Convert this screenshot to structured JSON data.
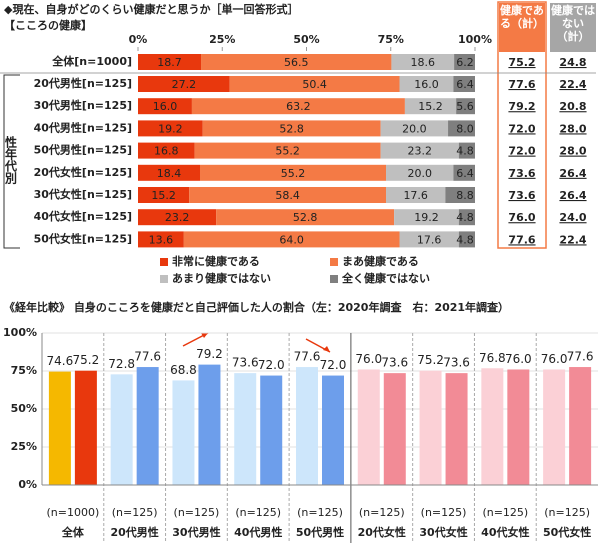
{
  "chart_data": [
    {
      "type": "stacked-bar-h",
      "title": "◆現在、自身がどのくらい健康だと思うか［単一回答形式］",
      "subtitle": "【こころの健康】",
      "side_label": "性年代別",
      "categories": [
        "全体[n=1000]",
        "20代男性[n=125]",
        "30代男性[n=125]",
        "40代男性[n=125]",
        "50代男性[n=125]",
        "20代女性[n=125]",
        "30代女性[n=125]",
        "40代女性[n=125]",
        "50代女性[n=125]"
      ],
      "series": [
        {
          "name": "非常に健康である",
          "color": "#e8380d",
          "values": [
            18.7,
            27.2,
            16.0,
            19.2,
            16.8,
            18.4,
            15.2,
            23.2,
            13.6
          ],
          "value_labels": [
            "18.7",
            "27.2",
            "16.0",
            "19.2",
            "16.8",
            "18.4",
            "15.2",
            "23.2",
            "13.6"
          ]
        },
        {
          "name": "まあ健康である",
          "color": "#f47a45",
          "values": [
            56.5,
            50.4,
            63.2,
            52.8,
            55.2,
            55.2,
            58.4,
            52.8,
            64.0
          ],
          "value_labels": [
            "56.5",
            "50.4",
            "63.2",
            "52.8",
            "55.2",
            "55.2",
            "58.4",
            "52.8",
            "64.0"
          ]
        },
        {
          "name": "あまり健康ではない",
          "color": "#bfbfbf",
          "values": [
            18.6,
            16.0,
            15.2,
            20.0,
            23.2,
            20.0,
            17.6,
            19.2,
            17.6
          ],
          "value_labels": [
            "18.6",
            "16.0",
            "15.2",
            "20.0",
            "23.2",
            "20.0",
            "17.6",
            "19.2",
            "17.6"
          ]
        },
        {
          "name": "全く健康ではない",
          "color": "#7f7f7f",
          "values": [
            6.2,
            6.4,
            5.6,
            8.0,
            4.8,
            6.4,
            8.8,
            4.8,
            4.8
          ],
          "value_labels": [
            "6.2",
            "6.4",
            "5.6",
            "8.0",
            "4.8",
            "6.4",
            "8.8",
            "4.8",
            "4.8"
          ]
        }
      ],
      "totals": [
        {
          "name": "健康である（計）",
          "color": "#f47a45",
          "values": [
            75.2,
            77.6,
            79.2,
            72.0,
            72.0,
            73.6,
            73.6,
            76.0,
            77.6
          ],
          "value_labels": [
            "75.2",
            "77.6",
            "79.2",
            "72.0",
            "72.0",
            "73.6",
            "73.6",
            "76.0",
            "77.6"
          ]
        },
        {
          "name": "健康ではない（計）",
          "color": "#a6a6a6",
          "values": [
            24.8,
            22.4,
            20.8,
            28.0,
            28.0,
            26.4,
            26.4,
            24.0,
            22.4
          ],
          "value_labels": [
            "24.8",
            "22.4",
            "20.8",
            "28.0",
            "28.0",
            "26.4",
            "26.4",
            "24.0",
            "22.4"
          ]
        }
      ],
      "xlim": [
        0,
        100
      ],
      "xticks": [
        {
          "value": 0,
          "label": "0%"
        },
        {
          "value": 25,
          "label": "25%"
        },
        {
          "value": 50,
          "label": "50%"
        },
        {
          "value": 75,
          "label": "75%"
        },
        {
          "value": 100,
          "label": "100%"
        }
      ]
    },
    {
      "type": "bar",
      "title": "《経年比較》 自身のこころを健康だと自己評価した人の割合（左：2020年調査　右：2021年調査）",
      "categories": [
        "全体",
        "20代男性",
        "30代男性",
        "40代男性",
        "50代男性",
        "20代女性",
        "30代女性",
        "40代女性",
        "50代女性"
      ],
      "sample_sizes": [
        "(n=1000)",
        "(n=125)",
        "(n=125)",
        "(n=125)",
        "(n=125)",
        "(n=125)",
        "(n=125)",
        "(n=125)",
        "(n=125)"
      ],
      "series": [
        {
          "colors": [
            "#f5b800",
            "#cde6fb",
            "#cde6fb",
            "#cde6fb",
            "#cde6fb",
            "#fbd0d6",
            "#fbd0d6",
            "#fbd0d6",
            "#fbd0d6"
          ],
          "values": [
            74.6,
            72.8,
            68.8,
            73.6,
            77.6,
            76.0,
            75.2,
            76.8,
            76.0
          ],
          "value_labels": [
            "74.6",
            "72.8",
            "68.8",
            "73.6",
            "77.6",
            "76.0",
            "75.2",
            "76.8",
            "76.0"
          ]
        },
        {
          "colors": [
            "#e8380d",
            "#6d9eeb",
            "#6d9eeb",
            "#6d9eeb",
            "#6d9eeb",
            "#f28b96",
            "#f28b96",
            "#f28b96",
            "#f28b96"
          ],
          "values": [
            75.2,
            77.6,
            79.2,
            72.0,
            72.0,
            73.6,
            73.6,
            76.0,
            77.6
          ],
          "value_labels": [
            "75.2",
            "77.6",
            "79.2",
            "72.0",
            "72.0",
            "73.6",
            "73.6",
            "76.0",
            "77.6"
          ]
        }
      ],
      "ylim": [
        0,
        100
      ],
      "yticks": [
        {
          "value": 0,
          "label": "0%"
        },
        {
          "value": 25,
          "label": "25%"
        },
        {
          "value": 50,
          "label": "50%"
        },
        {
          "value": 75,
          "label": "75%"
        },
        {
          "value": 100,
          "label": "100%"
        }
      ],
      "grid": true
    }
  ]
}
